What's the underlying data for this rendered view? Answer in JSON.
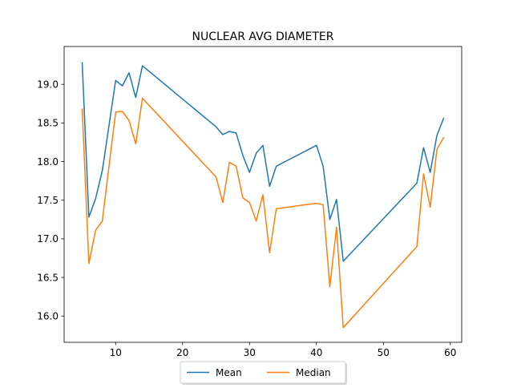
{
  "chart_data": {
    "type": "line",
    "title": "NUCLEAR AVG DIAMETER",
    "xlabel": "",
    "ylabel": "",
    "xlim": [
      2.3,
      61.7
    ],
    "ylim": [
      15.66,
      19.49
    ],
    "xticks": [
      10,
      20,
      30,
      40,
      50,
      60
    ],
    "yticks": [
      16.0,
      16.5,
      17.0,
      17.5,
      18.0,
      18.5,
      19.0
    ],
    "ytick_labels": [
      "16.0",
      "16.5",
      "17.0",
      "17.5",
      "18.0",
      "18.5",
      "19.0"
    ],
    "grid": false,
    "legend_position": "bottom-center",
    "series": [
      {
        "name": "Mean",
        "color": "#1f77b4",
        "x": [
          5,
          6,
          7,
          8,
          10,
          11,
          12,
          13,
          14,
          25,
          26,
          27,
          28,
          29,
          30,
          31,
          32,
          33,
          34,
          40,
          41,
          42,
          43,
          44,
          55,
          56,
          57,
          58,
          59
        ],
        "y": [
          19.28,
          17.28,
          17.52,
          17.88,
          19.05,
          18.98,
          19.15,
          18.83,
          19.24,
          18.45,
          18.35,
          18.39,
          18.37,
          18.08,
          17.86,
          18.11,
          18.21,
          17.68,
          17.94,
          18.21,
          17.94,
          17.25,
          17.51,
          16.71,
          17.72,
          18.18,
          17.86,
          18.34,
          18.56
        ]
      },
      {
        "name": "Median",
        "color": "#ff7f0e",
        "x": [
          5,
          6,
          7,
          8,
          10,
          11,
          12,
          13,
          14,
          25,
          26,
          27,
          28,
          29,
          30,
          31,
          32,
          33,
          34,
          40,
          41,
          42,
          43,
          44,
          55,
          56,
          57,
          58,
          59
        ],
        "y": [
          18.68,
          16.68,
          17.11,
          17.23,
          18.64,
          18.65,
          18.53,
          18.23,
          18.82,
          17.8,
          17.47,
          17.99,
          17.94,
          17.53,
          17.47,
          17.23,
          17.57,
          16.82,
          17.39,
          17.46,
          17.44,
          16.38,
          17.15,
          15.85,
          16.9,
          17.84,
          17.41,
          18.16,
          18.31
        ]
      }
    ]
  }
}
